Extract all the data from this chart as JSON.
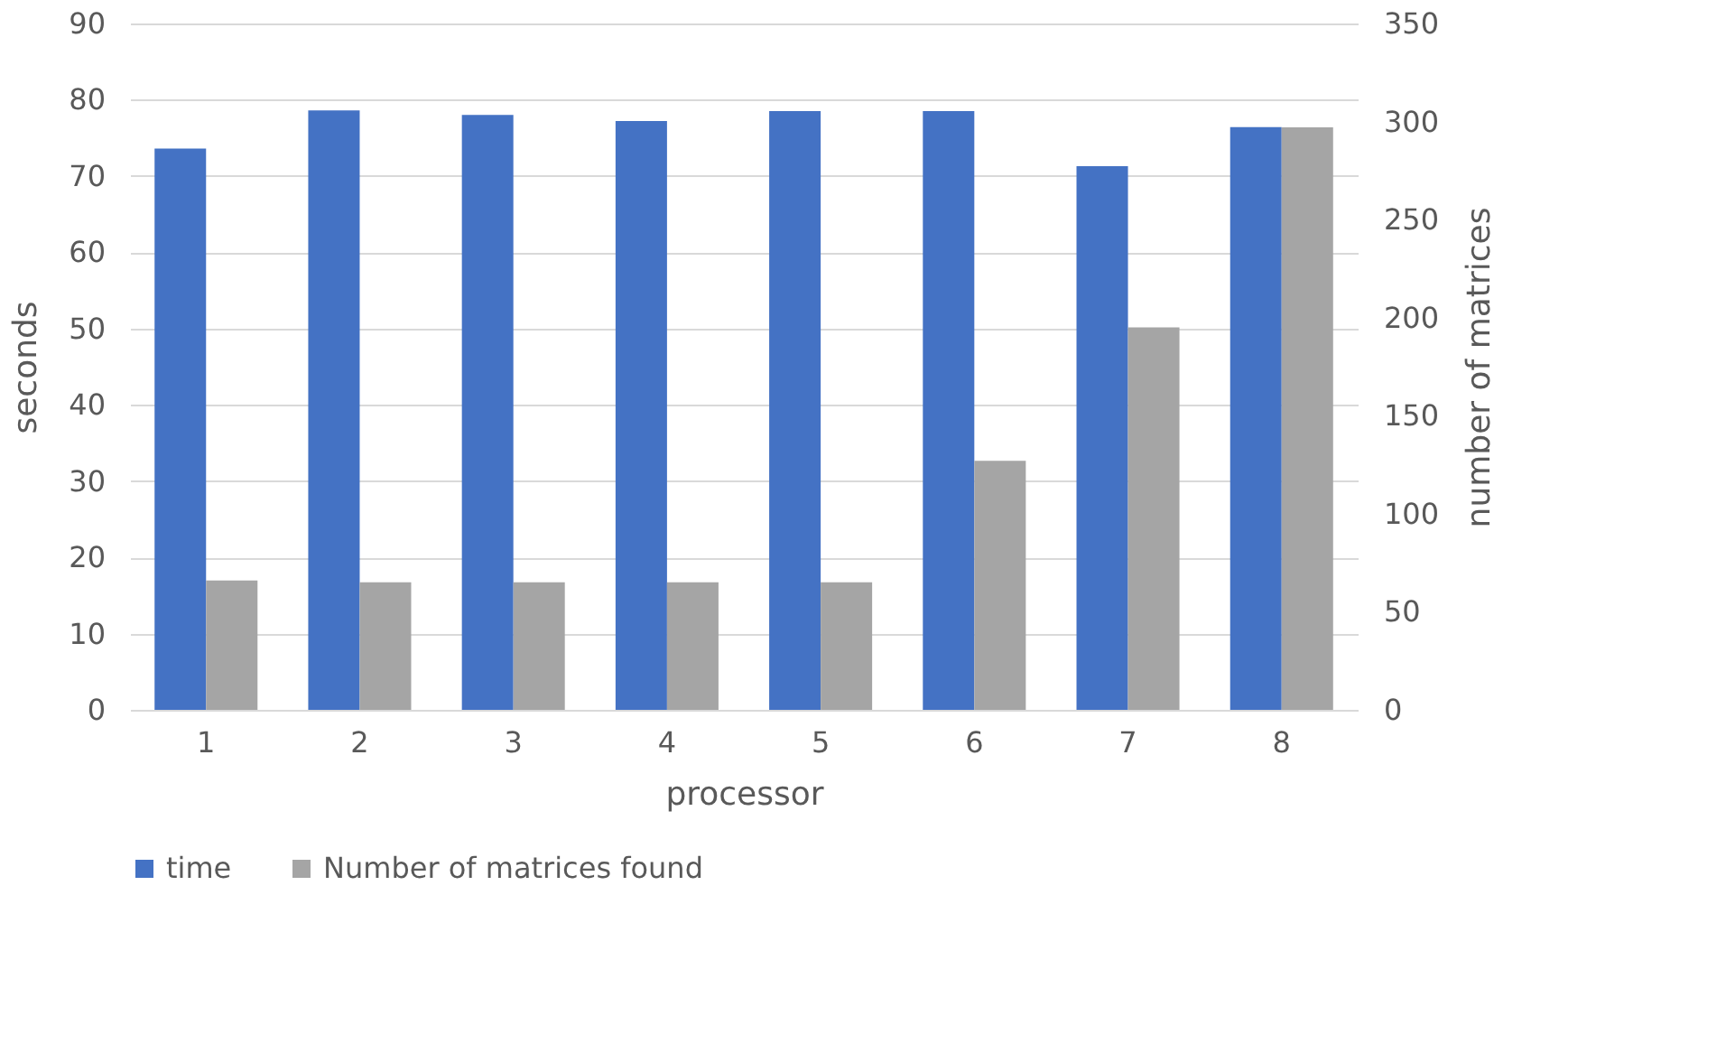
{
  "chart_data": {
    "type": "bar",
    "xlabel": "processor",
    "ylabel": "seconds",
    "y2label": "number of matrices",
    "categories": [
      "1",
      "2",
      "3",
      "4",
      "5",
      "6",
      "7",
      "8"
    ],
    "series": [
      {
        "name": "time",
        "color": "#4472c4",
        "values": [
          73.6,
          78.6,
          78.0,
          77.2,
          78.5,
          78.5,
          71.3,
          76.4
        ]
      },
      {
        "name": "Number of matrices found",
        "color": "#a5a5a5",
        "axis": "y2",
        "values": [
          66,
          65,
          65,
          65,
          65,
          127,
          195,
          297
        ]
      }
    ],
    "ylim": [
      0,
      90
    ],
    "yticks": [
      0,
      10,
      20,
      30,
      40,
      50,
      60,
      70,
      80,
      90
    ],
    "y2lim": [
      0,
      350
    ],
    "y2ticks": [
      0,
      50,
      100,
      150,
      200,
      250,
      300,
      350
    ],
    "grid": "y",
    "legend": "bottom"
  }
}
